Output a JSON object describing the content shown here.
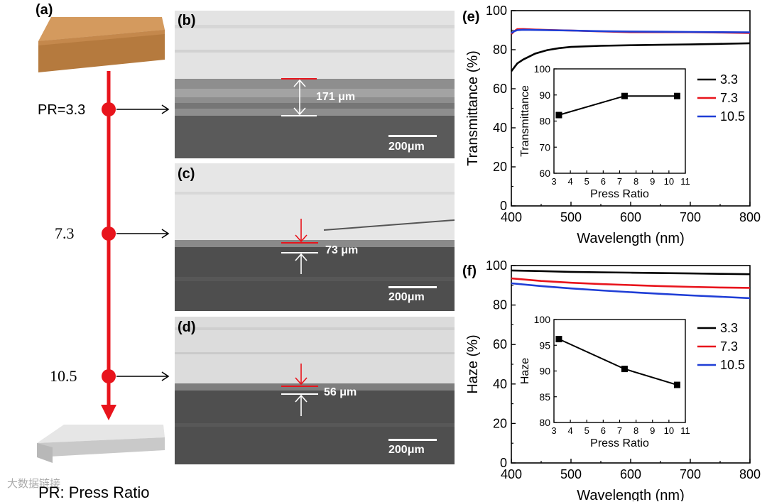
{
  "panels": {
    "a": "(a)",
    "b": "(b)",
    "c": "(c)",
    "d": "(d)",
    "e": "(e)",
    "f": "(f)"
  },
  "flow": {
    "pr_labels": [
      "PR=3.3",
      "7.3",
      "10.5"
    ],
    "footnote": "PR: Press Ratio",
    "line_color": "#e8141c"
  },
  "sem_images": [
    {
      "thickness": "171 μm",
      "scale": "200μm"
    },
    {
      "thickness": "73 μm",
      "scale": "200μm"
    },
    {
      "thickness": "56 μm",
      "scale": "200μm"
    }
  ],
  "watermark": "大数据链接",
  "chart_data": [
    {
      "type": "line",
      "panel": "(e)",
      "xlabel": "Wavelength (nm)",
      "ylabel": "Transmittance (%)",
      "xlim": [
        400,
        800
      ],
      "ylim": [
        0,
        100
      ],
      "xticks": [
        400,
        500,
        600,
        700,
        800
      ],
      "yticks": [
        0,
        20,
        40,
        60,
        80,
        100
      ],
      "legend": [
        "3.3",
        "7.3",
        "10.5"
      ],
      "legend_position": "right",
      "series": [
        {
          "name": "3.3",
          "color": "#000000",
          "x": [
            400,
            410,
            420,
            440,
            460,
            480,
            500,
            550,
            600,
            650,
            700,
            750,
            800
          ],
          "y": [
            69,
            73,
            75,
            78,
            79.8,
            80.8,
            81.4,
            82,
            82.3,
            82.5,
            82.7,
            83,
            83.3
          ]
        },
        {
          "name": "7.3",
          "color": "#e8141c",
          "x": [
            400,
            405,
            410,
            420,
            440,
            460,
            500,
            550,
            600,
            650,
            700,
            750,
            800
          ],
          "y": [
            88,
            89.5,
            90.5,
            90.6,
            90.3,
            90.1,
            89.8,
            89.4,
            89,
            89,
            89,
            88.8,
            88.6
          ]
        },
        {
          "name": "10.5",
          "color": "#1f3ed6",
          "x": [
            400,
            405,
            410,
            420,
            440,
            460,
            500,
            550,
            600,
            650,
            700,
            750,
            800
          ],
          "y": [
            88.5,
            89.5,
            90,
            90.2,
            90.1,
            90,
            89.8,
            89.5,
            89.3,
            89.2,
            89.1,
            89,
            88.9
          ]
        }
      ],
      "inset": {
        "xlabel": "Press Ratio",
        "ylabel": "Transmittance",
        "xlim": [
          3,
          11
        ],
        "ylim": [
          60,
          100
        ],
        "xticks": [
          3,
          4,
          5,
          6,
          7,
          8,
          9,
          10,
          11
        ],
        "yticks": [
          60,
          70,
          80,
          90,
          100
        ],
        "x": [
          3.3,
          7.3,
          10.5
        ],
        "y": [
          82.3,
          89.6,
          89.6
        ]
      }
    },
    {
      "type": "line",
      "panel": "(f)",
      "xlabel": "Wavelength (nm)",
      "ylabel": "Haze (%)",
      "xlim": [
        400,
        800
      ],
      "ylim": [
        0,
        100
      ],
      "xticks": [
        400,
        500,
        600,
        700,
        800
      ],
      "yticks": [
        0,
        20,
        40,
        60,
        80,
        100
      ],
      "legend": [
        "3.3",
        "7.3",
        "10.5"
      ],
      "legend_position": "right",
      "series": [
        {
          "name": "3.3",
          "color": "#000000",
          "x": [
            400,
            450,
            500,
            550,
            600,
            650,
            700,
            750,
            800
          ],
          "y": [
            97.5,
            97.2,
            96.8,
            96.6,
            96.4,
            96.2,
            96,
            95.8,
            95.6
          ]
        },
        {
          "name": "7.3",
          "color": "#e8141c",
          "x": [
            400,
            450,
            500,
            550,
            600,
            650,
            700,
            750,
            800
          ],
          "y": [
            93.5,
            92.2,
            91.3,
            90.6,
            90.1,
            89.6,
            89.2,
            88.9,
            88.7
          ]
        },
        {
          "name": "10.5",
          "color": "#1f3ed6",
          "x": [
            400,
            450,
            500,
            550,
            600,
            650,
            700,
            750,
            800
          ],
          "y": [
            91,
            89.6,
            88.4,
            87.4,
            86.5,
            85.7,
            84.9,
            84.2,
            83.5
          ]
        }
      ],
      "inset": {
        "xlabel": "Press Ratio",
        "ylabel": "Haze",
        "xlim": [
          3,
          11
        ],
        "ylim": [
          80,
          100
        ],
        "xticks": [
          3,
          4,
          5,
          6,
          7,
          8,
          9,
          10,
          11
        ],
        "yticks": [
          80,
          85,
          90,
          95,
          100
        ],
        "x": [
          3.3,
          7.3,
          10.5
        ],
        "y": [
          96.2,
          90.4,
          87.3
        ]
      }
    }
  ]
}
